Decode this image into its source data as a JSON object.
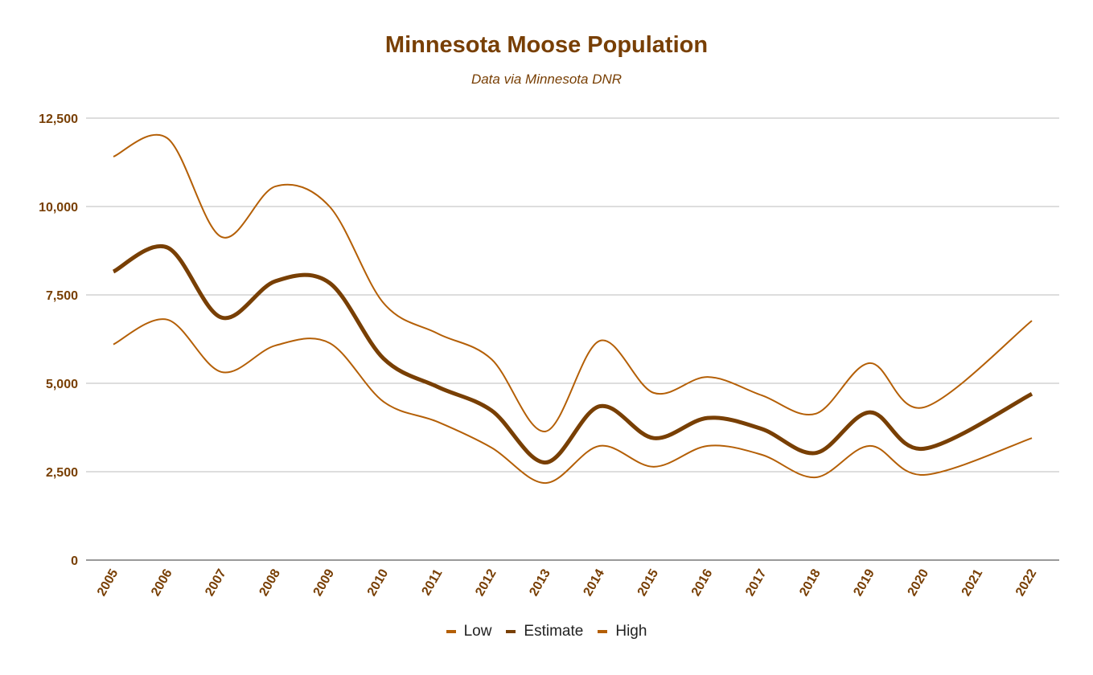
{
  "chart_data": {
    "type": "line",
    "title": "Minnesota Moose Population",
    "subtitle": "Data via Minnesota DNR",
    "xlabel": "",
    "ylabel": "",
    "ylim": [
      0,
      12500
    ],
    "yticks": [
      "0",
      "2,500",
      "5,000",
      "7,500",
      "10,000",
      "12,500"
    ],
    "ytick_values": [
      0,
      2500,
      5000,
      7500,
      10000,
      12500
    ],
    "grid": true,
    "smooth": true,
    "legend_position": "bottom",
    "categories": [
      "2005",
      "2006",
      "2007",
      "2008",
      "2009",
      "2010",
      "2011",
      "2012",
      "2013",
      "2014",
      "2015",
      "2016",
      "2017",
      "2018",
      "2019",
      "2020",
      "2021",
      "2022"
    ],
    "series": [
      {
        "name": "Low",
        "color": "#b45f06",
        "values": [
          6100,
          6800,
          5320,
          6070,
          6140,
          4480,
          3910,
          3180,
          2180,
          3230,
          2640,
          3230,
          2980,
          2340,
          3230,
          2410,
          null,
          3450
        ]
      },
      {
        "name": "Estimate",
        "color": "#783f04",
        "values": [
          8160,
          8840,
          6860,
          7890,
          7840,
          5700,
          4900,
          4230,
          2760,
          4350,
          3450,
          4020,
          3710,
          3030,
          4180,
          3150,
          null,
          4700
        ]
      },
      {
        "name": "High",
        "color": "#b45f06",
        "values": [
          11410,
          11930,
          9140,
          10570,
          10000,
          7270,
          6410,
          5680,
          3640,
          6200,
          4730,
          5180,
          4660,
          4140,
          5570,
          4320,
          null,
          6770
        ]
      }
    ]
  }
}
